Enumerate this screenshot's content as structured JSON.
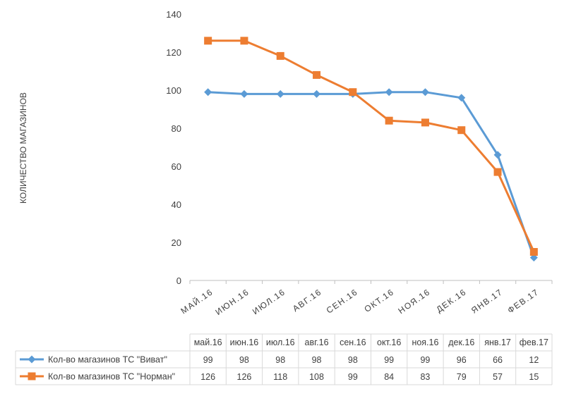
{
  "chart_data": {
    "type": "line",
    "ylabel": "КОЛИЧЕСТВО МАГАЗИНОВ",
    "ylim": [
      0,
      140
    ],
    "yticks": [
      0,
      20,
      40,
      60,
      80,
      100,
      120,
      140
    ],
    "grid": false,
    "axis_categories": [
      "МАЙ.16",
      "ИЮН.16",
      "ИЮЛ.16",
      "АВГ.16",
      "СЕН.16",
      "ОКТ.16",
      "НОЯ.16",
      "ДЕК.16",
      "ЯНВ.17",
      "ФЕВ.17"
    ],
    "table_categories": [
      "май.16",
      "июн.16",
      "июл.16",
      "авг.16",
      "сен.16",
      "окт.16",
      "ноя.16",
      "дек.16",
      "янв.17",
      "фев.17"
    ],
    "series": [
      {
        "name": "Кол-во магазинов ТС \"Виват\"",
        "color": "#5b9bd5",
        "marker": "diamond",
        "values": [
          99,
          98,
          98,
          98,
          98,
          99,
          99,
          96,
          66,
          12
        ]
      },
      {
        "name": "Кол-во магазинов ТС \"Норман\"",
        "color": "#ed7d31",
        "marker": "square",
        "values": [
          126,
          126,
          118,
          108,
          99,
          84,
          83,
          79,
          57,
          15
        ]
      }
    ],
    "legend": "data-table"
  }
}
